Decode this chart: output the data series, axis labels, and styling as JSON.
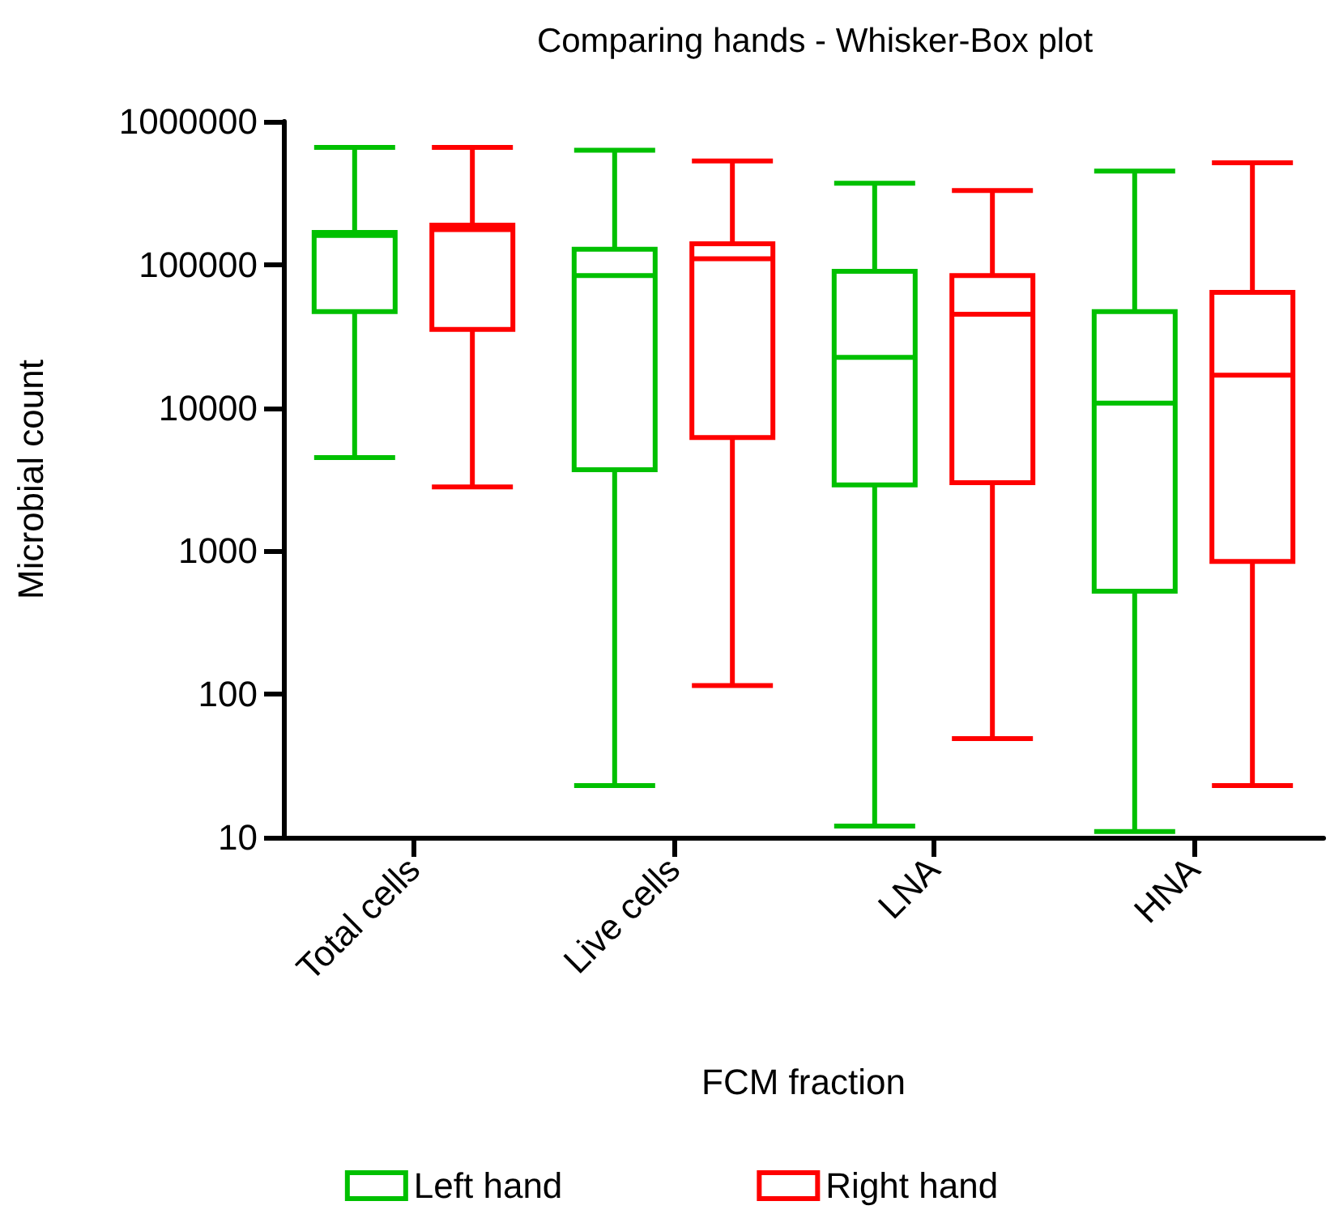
{
  "chart_data": {
    "type": "box",
    "title": "Comparing hands - Whisker-Box plot",
    "xlabel": "FCM fraction",
    "ylabel": "Microbial count",
    "categories": [
      "Total cells",
      "Live cells",
      "LNA",
      "HNA"
    ],
    "series": [
      {
        "name": "Left hand",
        "color": "#00c000",
        "boxes": [
          {
            "low": 4500,
            "q1": 47000,
            "median": 160000,
            "q3": 168000,
            "high": 660000
          },
          {
            "low": 23,
            "q1": 3700,
            "median": 84000,
            "q3": 128000,
            "high": 630000
          },
          {
            "low": 12,
            "q1": 2900,
            "median": 22500,
            "q3": 90000,
            "high": 370000
          },
          {
            "low": 11,
            "q1": 525,
            "median": 10800,
            "q3": 47000,
            "high": 450000
          }
        ]
      },
      {
        "name": "Right hand",
        "color": "#ff0000",
        "boxes": [
          {
            "low": 2800,
            "q1": 35300,
            "median": 176000,
            "q3": 189000,
            "high": 660000
          },
          {
            "low": 115,
            "q1": 6200,
            "median": 110000,
            "q3": 140000,
            "high": 530000
          },
          {
            "low": 49,
            "q1": 3000,
            "median": 45000,
            "q3": 84000,
            "high": 330000
          },
          {
            "low": 23,
            "q1": 845,
            "median": 16900,
            "q3": 64000,
            "high": 515000
          }
        ]
      }
    ],
    "ylim": [
      10,
      1000000
    ],
    "yticks": [
      10,
      100,
      1000,
      10000,
      100000,
      1000000
    ],
    "log": true,
    "legend": "bottom"
  }
}
